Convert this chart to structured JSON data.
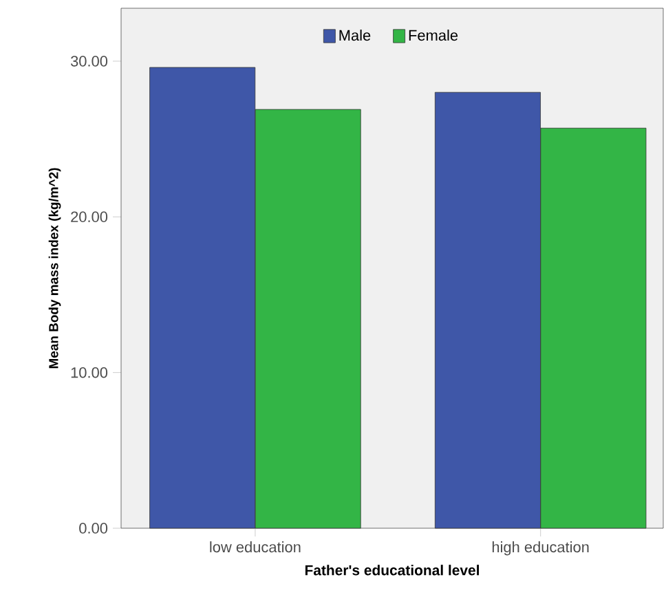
{
  "chart_data": {
    "type": "bar",
    "xlabel": "Father's educational level",
    "ylabel": "Mean Body mass index (kg/m^2)",
    "categories": [
      "low education",
      "high education"
    ],
    "series": [
      {
        "name": "Male",
        "color": "#3f57a8",
        "values": [
          29.6,
          28.0
        ]
      },
      {
        "name": "Female",
        "color": "#33b546",
        "values": [
          26.9,
          25.7
        ]
      }
    ],
    "ylim": [
      0,
      33.4
    ],
    "yticks": [
      {
        "value": 0,
        "label": "0.00"
      },
      {
        "value": 10,
        "label": "10.00"
      },
      {
        "value": 20,
        "label": "20.00"
      },
      {
        "value": 30,
        "label": "30.00"
      }
    ],
    "grid": false,
    "legend": "top"
  }
}
